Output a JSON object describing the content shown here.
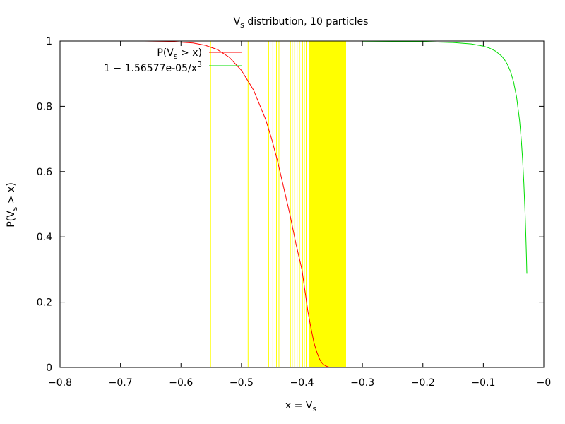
{
  "chart_data": {
    "type": "line",
    "title": "Vₛ distribution, 10 particles",
    "title_parts": {
      "base": "V",
      "sub": "s",
      "rest": " distribution, 10 particles"
    },
    "xlabel": "x = Vₛ",
    "xlabel_parts": {
      "base": "x = V",
      "sub": "s"
    },
    "ylabel": "P(Vₛ > x)",
    "ylabel_parts": {
      "base": "P(V",
      "sub": "s",
      "rest": " > x)"
    },
    "xlim": [
      -0.8,
      0
    ],
    "ylim": [
      0,
      1
    ],
    "grid": false,
    "legend_position": "top-left",
    "x_ticks": [
      -0.8,
      -0.7,
      -0.6,
      -0.5,
      -0.4,
      -0.3,
      -0.2,
      -0.1,
      0
    ],
    "x_tick_labels": [
      "−0.8",
      "−0.7",
      "−0.6",
      "−0.5",
      "−0.4",
      "−0.3",
      "−0.2",
      "−0.1",
      "−0"
    ],
    "y_ticks": [
      0,
      0.2,
      0.4,
      0.6,
      0.8,
      1
    ],
    "y_tick_labels": [
      "0",
      "0.2",
      "0.4",
      "0.6",
      "0.8",
      "1"
    ],
    "series": [
      {
        "name": "P(Vₛ > x)",
        "name_parts": {
          "base": "P(V",
          "sub": "s",
          "rest": " > x)"
        },
        "color": "#ff0000",
        "x": [
          -0.66,
          -0.62,
          -0.58,
          -0.56,
          -0.54,
          -0.52,
          -0.5,
          -0.48,
          -0.46,
          -0.45,
          -0.44,
          -0.43,
          -0.42,
          -0.41,
          -0.4,
          -0.39,
          -0.385,
          -0.38,
          -0.375,
          -0.37,
          -0.365,
          -0.36,
          -0.355,
          -0.35,
          -0.345,
          -0.34
        ],
        "y": [
          1.0,
          0.999,
          0.994,
          0.987,
          0.974,
          0.95,
          0.91,
          0.85,
          0.76,
          0.7,
          0.63,
          0.55,
          0.47,
          0.38,
          0.3,
          0.17,
          0.12,
          0.075,
          0.045,
          0.022,
          0.01,
          0.004,
          0.001,
          0.0003,
          0.0,
          0.0
        ]
      },
      {
        "name": "1 − 1.56577e-05/x³",
        "name_parts": {
          "base": "1 − 1.56577e-05/x",
          "sup": "3"
        },
        "color": "#00dd00",
        "x": [
          -0.3,
          -0.25,
          -0.2,
          -0.15,
          -0.12,
          -0.1,
          -0.09,
          -0.08,
          -0.07,
          -0.065,
          -0.06,
          -0.055,
          -0.05,
          -0.045,
          -0.04,
          -0.037,
          -0.035,
          -0.033,
          -0.031,
          -0.03,
          -0.0293,
          -0.0288,
          -0.0285,
          -0.0282,
          -0.028
        ],
        "y": [
          0.99942,
          0.999,
          0.998,
          0.9954,
          0.991,
          0.9843,
          0.9785,
          0.9694,
          0.9544,
          0.943,
          0.9275,
          0.9059,
          0.8747,
          0.8282,
          0.7554,
          0.6909,
          0.6348,
          0.5643,
          0.4744,
          0.4201,
          0.3775,
          0.3444,
          0.3235,
          0.3,
          0.287
        ]
      }
    ],
    "sample_markers": {
      "color": "#ffff00",
      "x": [
        -0.551,
        -0.489,
        -0.455,
        -0.448,
        -0.442,
        -0.438,
        -0.419,
        -0.416,
        -0.412,
        -0.408,
        -0.404,
        -0.399,
        -0.396,
        -0.393
      ],
      "band_range": [
        -0.388,
        -0.327
      ]
    }
  }
}
